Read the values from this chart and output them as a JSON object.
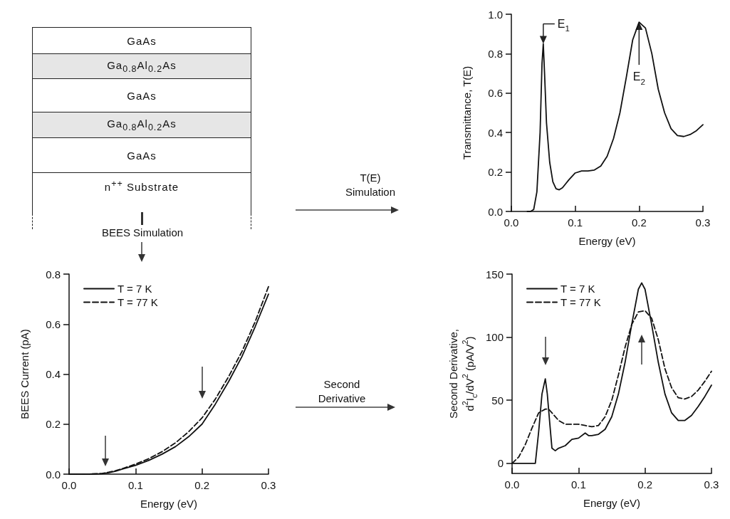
{
  "chart_data": [
    {
      "type": "other",
      "categories": [
        "GaAs",
        "Ga$_{0.8}$Al$_{0.2}$As",
        "GaAs",
        "Ga$_{0.8}$Al$_{0.2}$As",
        "GaAs",
        "n$^{++}$ Substrate"
      ],
      "colors": [
        "#ffffff",
        "#e6e6e6",
        "#ffffff",
        "#e6e6e6",
        "#ffffff",
        "#ffffff"
      ],
      "annotations": [
        "BEES Simulation"
      ]
    },
    {
      "type": "line",
      "xlabel": "Energy (eV)",
      "ylabel": "Transmittance, T(E)",
      "xlim": [
        0,
        0.3
      ],
      "ylim": [
        0,
        1
      ],
      "xticks": [
        {
          "value": 0,
          "label": "0.0"
        },
        {
          "value": 0.1,
          "label": "0.1"
        },
        {
          "value": 0.2,
          "label": "0.2"
        },
        {
          "value": 0.3,
          "label": "0.3"
        }
      ],
      "yticks": [
        {
          "value": 0,
          "label": "0.0"
        },
        {
          "value": 0.2,
          "label": "0.2"
        },
        {
          "value": 0.4,
          "label": "0.4"
        },
        {
          "value": 0.6,
          "label": "0.6"
        },
        {
          "value": 0.8,
          "label": "0.8"
        },
        {
          "value": 1,
          "label": "1.0"
        }
      ],
      "marker": "none",
      "legend": false,
      "x": [
        0.025,
        0.03,
        0.035,
        0.04,
        0.045,
        0.048,
        0.05,
        0.052,
        0.055,
        0.06,
        0.065,
        0.07,
        0.075,
        0.08,
        0.09,
        0.1,
        0.11,
        0.12,
        0.13,
        0.14,
        0.15,
        0.16,
        0.17,
        0.18,
        0.19,
        0.2,
        0.21,
        0.22,
        0.23,
        0.24,
        0.25,
        0.26,
        0.27,
        0.28,
        0.29,
        0.3
      ],
      "series": [
        {
          "color": "#111111",
          "line_style": "solid",
          "values": [
            0,
            0,
            0.01,
            0.1,
            0.4,
            0.75,
            0.85,
            0.7,
            0.45,
            0.25,
            0.15,
            0.115,
            0.11,
            0.12,
            0.16,
            0.195,
            0.205,
            0.205,
            0.21,
            0.23,
            0.28,
            0.37,
            0.5,
            0.68,
            0.87,
            0.96,
            0.93,
            0.8,
            0.62,
            0.5,
            0.42,
            0.385,
            0.38,
            0.39,
            0.41,
            0.44
          ]
        }
      ],
      "annotations": [
        "T(E)\nSimulation",
        {
          "text": "E$_{1}$",
          "x": 0.05,
          "y": 0.85
        },
        {
          "text": "E$_{2}$",
          "x": 0.2,
          "y": 0.96
        }
      ]
    },
    {
      "type": "line",
      "xlabel": "Energy (eV)",
      "ylabel": "BEES Current (pA)",
      "xlim": [
        0,
        0.3
      ],
      "ylim": [
        0,
        0.8
      ],
      "xticks": [
        {
          "value": 0,
          "label": "0.0"
        },
        {
          "value": 0.1,
          "label": "0.1"
        },
        {
          "value": 0.2,
          "label": "0.2"
        },
        {
          "value": 0.3,
          "label": "0.3"
        }
      ],
      "yticks": [
        {
          "value": 0,
          "label": "0.0"
        },
        {
          "value": 0.2,
          "label": "0.2"
        },
        {
          "value": 0.4,
          "label": "0.4"
        },
        {
          "value": 0.6,
          "label": "0.6"
        },
        {
          "value": 0.8,
          "label": "0.8"
        }
      ],
      "marker": "none",
      "legend": "top left",
      "x": [
        0,
        0.03,
        0.05,
        0.06,
        0.07,
        0.08,
        0.1,
        0.12,
        0.14,
        0.16,
        0.18,
        0.2,
        0.22,
        0.24,
        0.26,
        0.28,
        0.3
      ],
      "series": [
        {
          "name": "T = 7 K",
          "color": "#111111",
          "line_style": "solid",
          "values": [
            0,
            0,
            0.002,
            0.006,
            0.012,
            0.02,
            0.035,
            0.055,
            0.08,
            0.11,
            0.15,
            0.2,
            0.28,
            0.37,
            0.47,
            0.59,
            0.72
          ]
        },
        {
          "name": "T = 77 K",
          "color": "#111111",
          "line_style": "dashed",
          "values": [
            0,
            0,
            0.003,
            0.008,
            0.014,
            0.022,
            0.04,
            0.062,
            0.09,
            0.125,
            0.17,
            0.225,
            0.3,
            0.39,
            0.49,
            0.61,
            0.75
          ]
        }
      ]
    },
    {
      "type": "line",
      "xlabel": "Energy (eV)",
      "ylabel": "Second Derivative,\nd$^{2}$I$_{c}$/dV$^{2}$ (pA/V$^{2}$)",
      "xlim": [
        0,
        0.3
      ],
      "ylim": [
        -8,
        150
      ],
      "xticks": [
        {
          "value": 0,
          "label": "0.0"
        },
        {
          "value": 0.1,
          "label": "0.1"
        },
        {
          "value": 0.2,
          "label": "0.2"
        },
        {
          "value": 0.3,
          "label": "0.3"
        }
      ],
      "yticks": [
        0,
        50,
        100,
        150
      ],
      "marker": "none",
      "legend": "top left",
      "series": [
        {
          "name": "T = 7 K",
          "color": "#111111",
          "line_style": "solid",
          "x": [
            0,
            0.035,
            0.04,
            0.045,
            0.05,
            0.053,
            0.057,
            0.06,
            0.065,
            0.07,
            0.08,
            0.09,
            0.1,
            0.11,
            0.115,
            0.12,
            0.13,
            0.14,
            0.15,
            0.16,
            0.17,
            0.18,
            0.19,
            0.195,
            0.2,
            0.21,
            0.22,
            0.23,
            0.24,
            0.25,
            0.26,
            0.27,
            0.28,
            0.29,
            0.3
          ],
          "values": [
            0,
            0,
            25,
            55,
            67,
            55,
            30,
            12,
            10,
            12,
            14,
            19,
            20,
            24,
            22,
            22,
            23,
            27,
            37,
            55,
            80,
            110,
            138,
            143,
            138,
            110,
            80,
            55,
            40,
            34,
            34,
            38,
            45,
            53,
            62
          ]
        },
        {
          "name": "T = 77 K",
          "color": "#111111",
          "line_style": "dashed",
          "x": [
            0,
            0.01,
            0.02,
            0.03,
            0.04,
            0.05,
            0.055,
            0.06,
            0.07,
            0.08,
            0.1,
            0.11,
            0.12,
            0.13,
            0.14,
            0.15,
            0.16,
            0.17,
            0.18,
            0.19,
            0.2,
            0.21,
            0.22,
            0.23,
            0.24,
            0.25,
            0.26,
            0.27,
            0.28,
            0.29,
            0.3
          ],
          "values": [
            0,
            5,
            15,
            28,
            40,
            43,
            43,
            40,
            34,
            31,
            31,
            30,
            29,
            30,
            37,
            50,
            70,
            92,
            110,
            120,
            121,
            115,
            98,
            75,
            60,
            52,
            51,
            53,
            58,
            65,
            73
          ]
        }
      ],
      "annotations": [
        "Second\nDerivative"
      ]
    }
  ]
}
